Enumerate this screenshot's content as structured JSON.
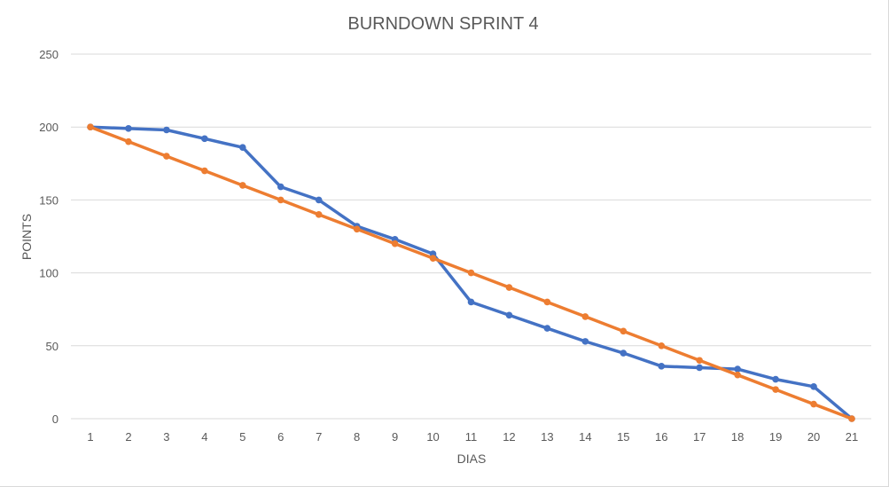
{
  "chart_data": {
    "type": "line",
    "title": "BURNDOWN SPRINT 4",
    "xlabel": "DIAS",
    "ylabel": "POINTS",
    "ylim": [
      0,
      250
    ],
    "yticks": [
      0,
      50,
      100,
      150,
      200,
      250
    ],
    "categories": [
      "1",
      "2",
      "3",
      "4",
      "5",
      "6",
      "7",
      "8",
      "9",
      "10",
      "11",
      "12",
      "13",
      "14",
      "15",
      "16",
      "17",
      "18",
      "19",
      "20",
      "21"
    ],
    "grid": true,
    "legend": "none",
    "series": [
      {
        "color": "#4472c4",
        "values": [
          200,
          199,
          198,
          192,
          186,
          159,
          150,
          132,
          123,
          113,
          80,
          71,
          62,
          53,
          45,
          36,
          35,
          34,
          27,
          22,
          0
        ]
      },
      {
        "color": "#ed7d31",
        "values": [
          200,
          190,
          180,
          170,
          160,
          150,
          140,
          130,
          120,
          110,
          100,
          90,
          80,
          70,
          60,
          50,
          40,
          30,
          20,
          10,
          0
        ]
      }
    ]
  }
}
